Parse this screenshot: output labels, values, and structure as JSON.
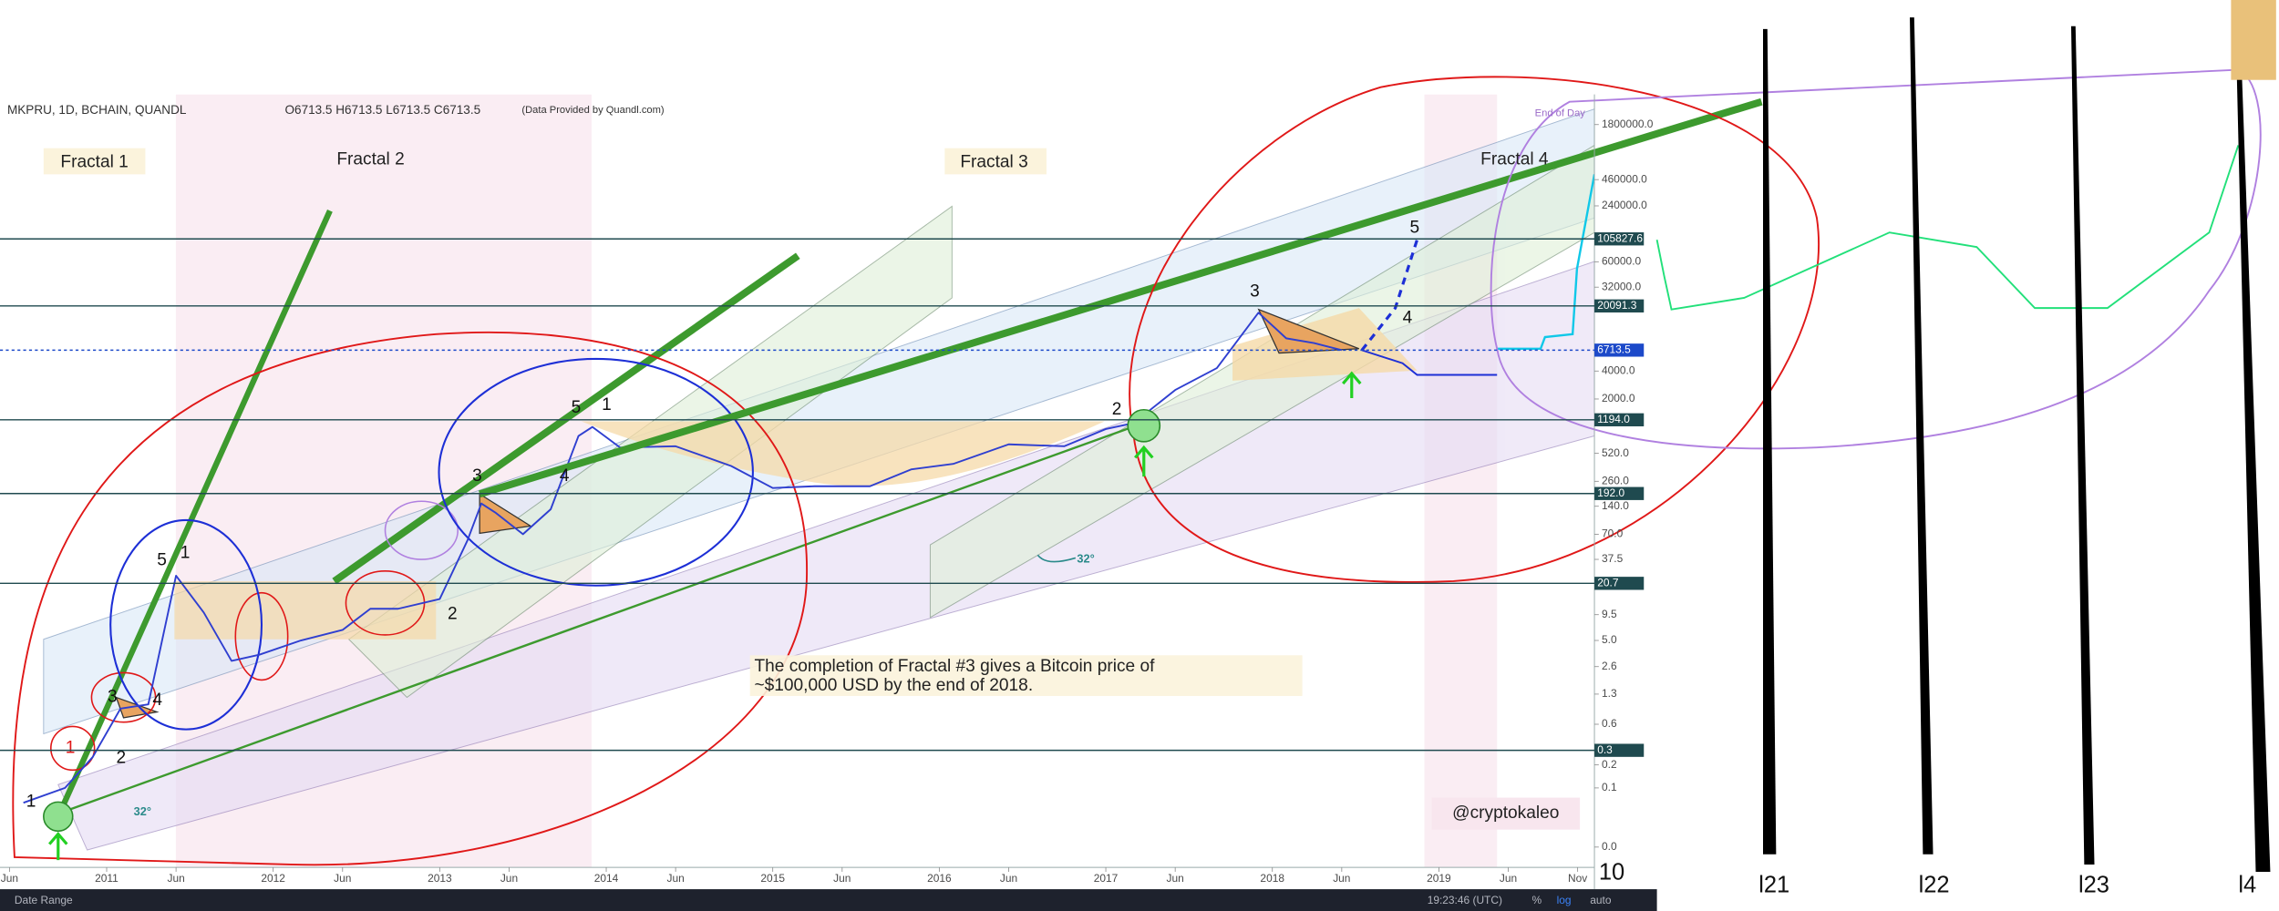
{
  "header": {
    "symbol": "MKPRU, 1D, BCHAIN, QUANDL",
    "ohlc": "O6713.5 H6713.5 L6713.5 C6713.5",
    "source": "(Data Provided by Quandl.com)",
    "end_of_day": "End of Day"
  },
  "chart_data": {
    "type": "line",
    "log_scale": true,
    "color": "#2f3fd0",
    "x": [
      "2010-07",
      "2010-10",
      "2010-12",
      "2011-02",
      "2011-04",
      "2011-06",
      "2011-08",
      "2011-10",
      "2011-12",
      "2012-03",
      "2012-06",
      "2012-08",
      "2012-10",
      "2013-01",
      "2013-03",
      "2013-04",
      "2013-05",
      "2013-07",
      "2013-09",
      "2013-11",
      "2013-12",
      "2014-02",
      "2014-06",
      "2014-10",
      "2015-01",
      "2015-04",
      "2015-08",
      "2015-11",
      "2016-02",
      "2016-06",
      "2016-10",
      "2017-01",
      "2017-03",
      "2017-06",
      "2017-09",
      "2017-12",
      "2018-02",
      "2018-04",
      "2018-06"
    ],
    "values": [
      0.06,
      0.1,
      0.25,
      0.9,
      1,
      25,
      10,
      3,
      3.5,
      5,
      6.5,
      11,
      11,
      14,
      60,
      150,
      120,
      70,
      130,
      800,
      1000,
      600,
      620,
      380,
      220,
      230,
      230,
      350,
      400,
      650,
      620,
      950,
      1100,
      2500,
      4300,
      17000,
      9000,
      8000,
      6713.5
    ],
    "xlim": [
      "2010-05",
      "2019-12"
    ],
    "xticks": [
      {
        "value": "2010-06",
        "label": "Jun"
      },
      {
        "value": "2011-01",
        "label": "2011"
      },
      {
        "value": "2011-06",
        "label": "Jun"
      },
      {
        "value": "2012-01",
        "label": "2012"
      },
      {
        "value": "2012-06",
        "label": "Jun"
      },
      {
        "value": "2013-01",
        "label": "2013"
      },
      {
        "value": "2013-06",
        "label": "Jun"
      },
      {
        "value": "2014-01",
        "label": "2014"
      },
      {
        "value": "2014-06",
        "label": "Jun"
      },
      {
        "value": "2015-01",
        "label": "2015"
      },
      {
        "value": "2015-06",
        "label": "Jun"
      },
      {
        "value": "2016-01",
        "label": "2016"
      },
      {
        "value": "2016-06",
        "label": "Jun"
      },
      {
        "value": "2017-01",
        "label": "2017"
      },
      {
        "value": "2017-06",
        "label": "Jun"
      },
      {
        "value": "2018-01",
        "label": "2018"
      },
      {
        "value": "2018-06",
        "label": "Jun"
      },
      {
        "value": "2019-01",
        "label": "2019"
      },
      {
        "value": "2019-06",
        "label": "Jun"
      },
      {
        "value": "2019-11",
        "label": "Nov"
      }
    ],
    "ylim": [
      0,
      3800000
    ],
    "yticks": [
      {
        "value": 0,
        "label": "0.0"
      },
      0.1,
      0.2,
      0.6,
      1.3,
      2.6,
      {
        "value": 5,
        "label": "5.0"
      },
      9.5,
      37.5,
      {
        "value": 70,
        "label": "70.0"
      },
      {
        "value": 140,
        "label": "140.0"
      },
      {
        "value": 260,
        "label": "260.0"
      },
      {
        "value": 520,
        "label": "520.0"
      },
      {
        "value": 2000,
        "label": "2000.0"
      },
      {
        "value": 4000,
        "label": "4000.0"
      },
      {
        "value": 32000,
        "label": "32000.0"
      },
      {
        "value": 60000,
        "label": "60000.0"
      },
      {
        "value": 240000,
        "label": "240000.0"
      },
      {
        "value": 460000,
        "label": "460000.0"
      },
      {
        "value": 1800000,
        "label": "1800000.0"
      }
    ],
    "levels": [
      {
        "value": 105827.6,
        "label": "105827.6",
        "color": "#1f4a4f"
      },
      {
        "value": 20091.3,
        "label": "20091.3",
        "color": "#1f4a4f"
      },
      {
        "value": 6713.5,
        "label": "6713.5",
        "color": "#1c49c9"
      },
      {
        "value": 1194,
        "label": "1194.0",
        "color": "#1f4a4f"
      },
      {
        "value": 192,
        "label": "192.0",
        "color": "#1f4a4f"
      },
      {
        "value": 20.7,
        "label": "20.7",
        "color": "#1f4a4f"
      },
      {
        "value": 0.3,
        "label": "0.3",
        "color": "#1f4a4f"
      }
    ]
  },
  "annotations": {
    "fractals": [
      "Fractal 1",
      "Fractal 2",
      "Fractal 3",
      "Fractal 4"
    ],
    "note": [
      "The completion of Fractal #3 gives a Bitcoin price of",
      "~$100,000 USD by the end of 2018."
    ],
    "handle": "@cryptokaleo",
    "angles": [
      "32°",
      "32°"
    ],
    "waves": [
      "1",
      "1",
      "2",
      "3",
      "4",
      "5",
      "1",
      "2",
      "3",
      "4",
      "5",
      "1",
      "2",
      "3",
      "4",
      "5"
    ]
  },
  "toolbar": {
    "date_range": "Date Range",
    "time": "19:23:46 (UTC)",
    "percent": "%",
    "log": "log",
    "auto": "auto"
  },
  "handwriting": [
    "10",
    "l21",
    "l22",
    "l23",
    "l4"
  ]
}
